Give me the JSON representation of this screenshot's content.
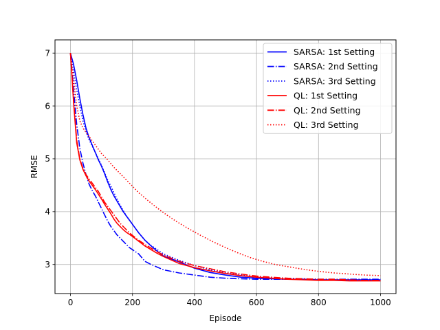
{
  "chart_data": {
    "type": "line",
    "title": "",
    "xlabel": "Episode",
    "ylabel": "RMSE",
    "xlim": [
      -50,
      1050
    ],
    "ylim": [
      2.45,
      7.25
    ],
    "xticks": [
      0,
      200,
      400,
      600,
      800,
      1000
    ],
    "yticks": [
      3,
      4,
      5,
      6,
      7
    ],
    "xtick_labels": [
      "0",
      "200",
      "400",
      "600",
      "800",
      "1000"
    ],
    "ytick_labels": [
      "3",
      "4",
      "5",
      "6",
      "7"
    ],
    "grid": true,
    "legend_position": "upper-right",
    "series": [
      {
        "name": "SARSA: 1st Setting",
        "color": "#0000ff",
        "dash": "solid",
        "x": [
          0,
          10,
          20,
          30,
          40,
          50,
          60,
          70,
          80,
          90,
          100,
          110,
          120,
          130,
          140,
          150,
          160,
          170,
          180,
          190,
          200,
          220,
          240,
          260,
          280,
          300,
          350,
          400,
          450,
          500,
          550,
          600,
          650,
          700,
          750,
          800,
          850,
          900,
          950,
          1000
        ],
        "y": [
          7.0,
          6.78,
          6.48,
          6.14,
          5.84,
          5.58,
          5.4,
          5.26,
          5.12,
          4.98,
          4.86,
          4.72,
          4.56,
          4.42,
          4.3,
          4.2,
          4.1,
          4.0,
          3.92,
          3.84,
          3.76,
          3.6,
          3.46,
          3.35,
          3.25,
          3.16,
          3.05,
          2.93,
          2.85,
          2.8,
          2.76,
          2.74,
          2.73,
          2.72,
          2.72,
          2.71,
          2.71,
          2.71,
          2.71,
          2.71
        ]
      },
      {
        "name": "SARSA: 2nd Setting",
        "color": "#0000ff",
        "dash": "dashdot",
        "x": [
          0,
          10,
          20,
          30,
          40,
          50,
          60,
          70,
          80,
          90,
          100,
          110,
          120,
          130,
          140,
          150,
          160,
          170,
          180,
          190,
          200,
          220,
          240,
          260,
          280,
          300,
          350,
          400,
          450,
          500,
          550,
          600,
          650,
          700,
          750,
          800,
          850,
          900,
          950,
          1000
        ],
        "y": [
          7.0,
          6.3,
          5.65,
          5.2,
          4.92,
          4.7,
          4.52,
          4.4,
          4.3,
          4.18,
          4.06,
          3.94,
          3.82,
          3.72,
          3.64,
          3.56,
          3.5,
          3.44,
          3.38,
          3.32,
          3.28,
          3.2,
          3.06,
          3.0,
          2.95,
          2.9,
          2.84,
          2.8,
          2.76,
          2.74,
          2.73,
          2.72,
          2.72,
          2.72,
          2.72,
          2.72,
          2.72,
          2.72,
          2.72,
          2.72
        ]
      },
      {
        "name": "SARSA: 3rd Setting",
        "color": "#0000ff",
        "dash": "dotted",
        "x": [
          0,
          10,
          20,
          30,
          40,
          50,
          60,
          70,
          80,
          90,
          100,
          110,
          120,
          130,
          140,
          150,
          160,
          170,
          180,
          190,
          200,
          220,
          240,
          260,
          280,
          300,
          350,
          400,
          450,
          500,
          550,
          600,
          650,
          700,
          750,
          800,
          850,
          900,
          950,
          1000
        ],
        "y": [
          7.0,
          6.65,
          6.3,
          6.0,
          5.72,
          5.52,
          5.36,
          5.24,
          5.12,
          5.0,
          4.88,
          4.74,
          4.6,
          4.48,
          4.36,
          4.24,
          4.12,
          4.02,
          3.92,
          3.84,
          3.76,
          3.6,
          3.46,
          3.36,
          3.28,
          3.2,
          3.08,
          2.98,
          2.9,
          2.84,
          2.8,
          2.77,
          2.75,
          2.74,
          2.73,
          2.72,
          2.71,
          2.71,
          2.71,
          2.7
        ]
      },
      {
        "name": "QL: 1st Setting",
        "color": "#ff0000",
        "dash": "solid",
        "x": [
          0,
          10,
          20,
          30,
          40,
          50,
          60,
          70,
          80,
          90,
          100,
          110,
          120,
          130,
          140,
          150,
          160,
          170,
          180,
          190,
          200,
          220,
          240,
          260,
          280,
          300,
          350,
          400,
          450,
          500,
          550,
          600,
          650,
          700,
          750,
          800,
          850,
          900,
          950,
          1000
        ],
        "y": [
          7.0,
          6.05,
          5.3,
          4.98,
          4.8,
          4.68,
          4.58,
          4.5,
          4.42,
          4.33,
          4.24,
          4.14,
          4.05,
          3.96,
          3.86,
          3.78,
          3.72,
          3.66,
          3.61,
          3.57,
          3.53,
          3.44,
          3.35,
          3.28,
          3.21,
          3.15,
          3.02,
          2.94,
          2.88,
          2.83,
          2.79,
          2.76,
          2.74,
          2.72,
          2.71,
          2.7,
          2.7,
          2.69,
          2.69,
          2.69
        ]
      },
      {
        "name": "QL: 2nd Setting",
        "color": "#ff0000",
        "dash": "dashdot",
        "x": [
          0,
          10,
          20,
          30,
          40,
          50,
          60,
          70,
          80,
          90,
          100,
          110,
          120,
          130,
          140,
          150,
          160,
          170,
          180,
          190,
          200,
          220,
          240,
          260,
          280,
          300,
          350,
          400,
          450,
          500,
          550,
          600,
          650,
          700,
          750,
          800,
          850,
          900,
          950,
          1000
        ],
        "y": [
          7.0,
          6.1,
          5.35,
          5.0,
          4.82,
          4.7,
          4.62,
          4.54,
          4.46,
          4.38,
          4.28,
          4.18,
          4.1,
          4.02,
          3.94,
          3.86,
          3.78,
          3.72,
          3.66,
          3.6,
          3.55,
          3.46,
          3.38,
          3.31,
          3.24,
          3.18,
          3.06,
          2.98,
          2.92,
          2.86,
          2.82,
          2.78,
          2.76,
          2.74,
          2.73,
          2.72,
          2.72,
          2.71,
          2.7,
          2.7
        ]
      },
      {
        "name": "QL: 3rd Setting",
        "color": "#ff0000",
        "dash": "dotted",
        "x": [
          0,
          10,
          20,
          30,
          40,
          50,
          60,
          70,
          80,
          90,
          100,
          120,
          140,
          160,
          180,
          200,
          220,
          240,
          260,
          280,
          300,
          340,
          380,
          420,
          460,
          500,
          540,
          580,
          620,
          660,
          700,
          750,
          800,
          850,
          900,
          950,
          1000
        ],
        "y": [
          7.0,
          6.5,
          6.0,
          5.72,
          5.58,
          5.5,
          5.42,
          5.34,
          5.26,
          5.18,
          5.1,
          4.98,
          4.84,
          4.72,
          4.6,
          4.48,
          4.36,
          4.26,
          4.16,
          4.07,
          3.98,
          3.82,
          3.68,
          3.55,
          3.43,
          3.32,
          3.22,
          3.13,
          3.06,
          3.0,
          2.96,
          2.91,
          2.87,
          2.84,
          2.82,
          2.8,
          2.79
        ]
      }
    ]
  }
}
